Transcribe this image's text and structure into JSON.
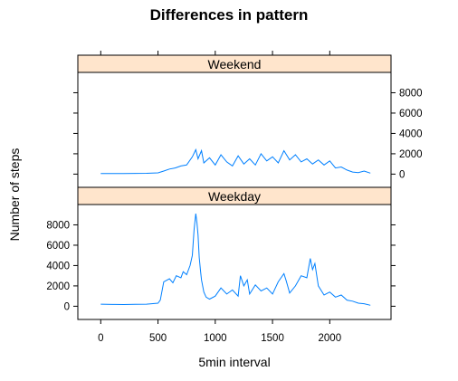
{
  "chart_data": {
    "type": "line",
    "title": "Differences in pattern",
    "xlabel": "5min interval",
    "ylabel": "Number of steps",
    "xlim": [
      -200,
      2535
    ],
    "ylim": [
      -1300,
      10000
    ],
    "x_ticks": [
      0,
      500,
      1000,
      1500,
      2000
    ],
    "y_ticks": [
      0,
      2000,
      4000,
      6000,
      8000
    ],
    "line_color": "#0080ff",
    "strip_color": "#ffe5cc",
    "panels": [
      {
        "name": "Weekend",
        "y_axis_side": "right",
        "x": [
          0,
          200,
          400,
          500,
          550,
          600,
          650,
          700,
          750,
          800,
          830,
          850,
          880,
          900,
          950,
          1000,
          1050,
          1100,
          1150,
          1200,
          1250,
          1300,
          1350,
          1400,
          1450,
          1500,
          1550,
          1600,
          1650,
          1700,
          1750,
          1800,
          1850,
          1900,
          1950,
          2000,
          2050,
          2100,
          2150,
          2200,
          2250,
          2300,
          2355
        ],
        "values": [
          50,
          60,
          80,
          120,
          300,
          500,
          600,
          800,
          900,
          1700,
          2400,
          1500,
          2300,
          1100,
          1600,
          900,
          1900,
          1200,
          800,
          1800,
          1000,
          1500,
          900,
          2000,
          1300,
          1700,
          1100,
          2300,
          1400,
          1900,
          1200,
          1500,
          1000,
          1400,
          900,
          1300,
          600,
          700,
          400,
          200,
          150,
          300,
          100
        ]
      },
      {
        "name": "Weekday",
        "y_axis_side": "left",
        "x": [
          0,
          100,
          200,
          300,
          400,
          500,
          520,
          550,
          600,
          630,
          660,
          700,
          720,
          750,
          780,
          800,
          815,
          830,
          840,
          850,
          860,
          870,
          880,
          900,
          920,
          950,
          1000,
          1050,
          1100,
          1150,
          1200,
          1220,
          1250,
          1280,
          1300,
          1350,
          1400,
          1450,
          1500,
          1550,
          1600,
          1620,
          1650,
          1700,
          1750,
          1800,
          1830,
          1850,
          1870,
          1900,
          1950,
          2000,
          2050,
          2100,
          2150,
          2200,
          2250,
          2300,
          2355
        ],
        "values": [
          200,
          180,
          170,
          190,
          200,
          300,
          600,
          2400,
          2700,
          2300,
          3000,
          2800,
          3400,
          3100,
          4000,
          5000,
          7500,
          9100,
          8200,
          7000,
          4800,
          3600,
          2600,
          1400,
          900,
          700,
          1000,
          1800,
          1200,
          1600,
          1000,
          3000,
          2000,
          2600,
          1200,
          2100,
          1500,
          1800,
          1200,
          2400,
          3200,
          2500,
          1300,
          2000,
          3000,
          2800,
          4700,
          3600,
          4200,
          2000,
          1100,
          1400,
          900,
          1100,
          600,
          500,
          300,
          250,
          100
        ]
      }
    ]
  }
}
